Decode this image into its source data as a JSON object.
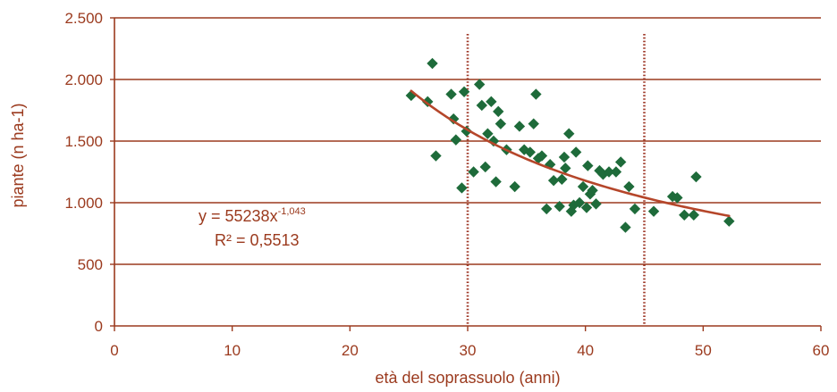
{
  "chart_data": {
    "type": "scatter",
    "title": "",
    "xlabel": "età del soprassuolo (anni)",
    "ylabel": "piante (n ha-1)",
    "xlim": [
      0,
      60
    ],
    "ylim": [
      0,
      2500
    ],
    "x_ticks": [
      0,
      10,
      20,
      30,
      40,
      50,
      60
    ],
    "x_tick_labels": [
      "0",
      "10",
      "20",
      "30",
      "40",
      "50",
      "60"
    ],
    "y_ticks": [
      0,
      500,
      1000,
      1500,
      2000,
      2500
    ],
    "y_tick_labels": [
      "0",
      "500",
      "1.000",
      "1.500",
      "2.000",
      "2.500"
    ],
    "grid": "horizontal",
    "vertical_reference_lines": [
      30,
      45
    ],
    "colors": {
      "points": "#1e6b3a",
      "trend": "#b5462a",
      "grid": "#9b3a1e",
      "text": "#9b3a1e",
      "reference": "#a03a2a"
    },
    "series": [
      {
        "marker": "diamond",
        "points": [
          [
            25.2,
            1870
          ],
          [
            26.6,
            1820
          ],
          [
            27.0,
            2130
          ],
          [
            27.3,
            1380
          ],
          [
            28.6,
            1880
          ],
          [
            28.8,
            1680
          ],
          [
            29.0,
            1510
          ],
          [
            29.5,
            1120
          ],
          [
            29.7,
            1900
          ],
          [
            29.9,
            1580
          ],
          [
            30.5,
            1250
          ],
          [
            31.0,
            1960
          ],
          [
            31.2,
            1790
          ],
          [
            31.5,
            1290
          ],
          [
            31.7,
            1560
          ],
          [
            32.0,
            1820
          ],
          [
            32.2,
            1500
          ],
          [
            32.4,
            1170
          ],
          [
            32.6,
            1740
          ],
          [
            32.8,
            1640
          ],
          [
            33.3,
            1430
          ],
          [
            34.0,
            1130
          ],
          [
            34.4,
            1620
          ],
          [
            34.8,
            1430
          ],
          [
            35.3,
            1410
          ],
          [
            35.6,
            1640
          ],
          [
            35.8,
            1880
          ],
          [
            36.0,
            1360
          ],
          [
            36.3,
            1380
          ],
          [
            36.7,
            950
          ],
          [
            37.0,
            1310
          ],
          [
            37.3,
            1180
          ],
          [
            37.8,
            970
          ],
          [
            38.0,
            1190
          ],
          [
            38.2,
            1370
          ],
          [
            38.3,
            1280
          ],
          [
            38.6,
            1560
          ],
          [
            38.8,
            930
          ],
          [
            39.0,
            980
          ],
          [
            39.2,
            1410
          ],
          [
            39.5,
            1000
          ],
          [
            39.8,
            1130
          ],
          [
            40.1,
            960
          ],
          [
            40.2,
            1300
          ],
          [
            40.4,
            1070
          ],
          [
            40.6,
            1100
          ],
          [
            40.9,
            990
          ],
          [
            41.2,
            1260
          ],
          [
            41.5,
            1230
          ],
          [
            42.0,
            1250
          ],
          [
            42.6,
            1250
          ],
          [
            43.0,
            1330
          ],
          [
            43.4,
            800
          ],
          [
            43.7,
            1130
          ],
          [
            44.2,
            950
          ],
          [
            45.8,
            930
          ],
          [
            47.4,
            1050
          ],
          [
            47.8,
            1040
          ],
          [
            48.4,
            900
          ],
          [
            49.2,
            900
          ],
          [
            49.4,
            1210
          ],
          [
            52.2,
            850
          ]
        ]
      }
    ],
    "trendline": {
      "type": "power",
      "a": 55238,
      "b": -1.043,
      "x_range": [
        25.2,
        52.2
      ],
      "equation_label": {
        "base": "y = 55238x",
        "exponent": "-1,043"
      },
      "r2_label": "R² = 0,5513"
    }
  }
}
